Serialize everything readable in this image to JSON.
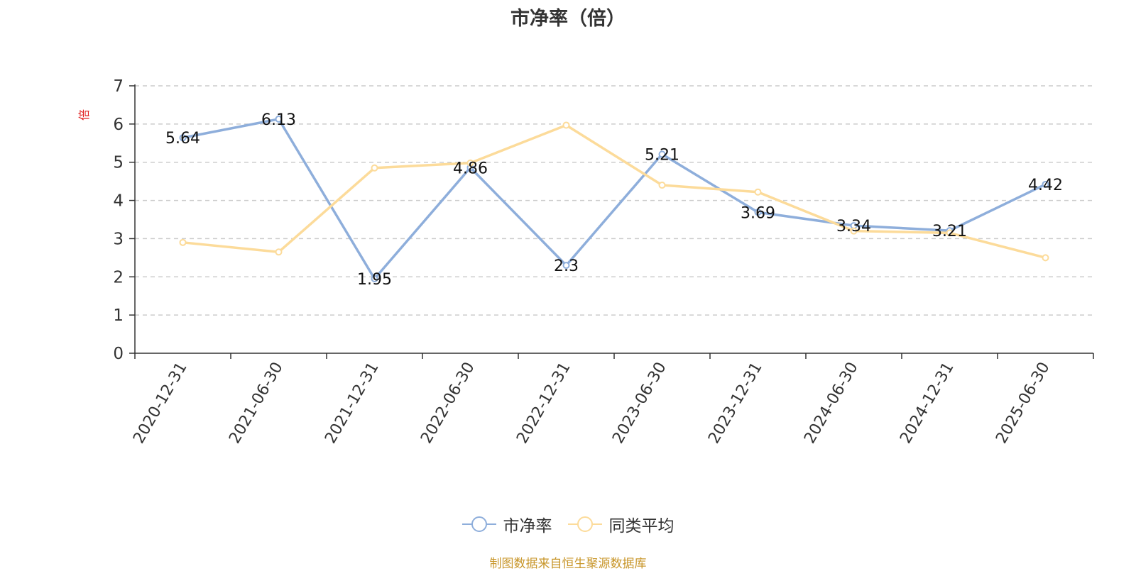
{
  "title": "市净率（倍）",
  "source_note": "制图数据来自恒生聚源数据库",
  "colors": {
    "pb": "#8eaedb",
    "avg": "#fcdb9a",
    "unit": "#e02020",
    "axis": "#333333",
    "grid": "#cccccc"
  },
  "legend": [
    {
      "label": "市净率",
      "color": "#8eaedb"
    },
    {
      "label": "同类平均",
      "color": "#fcdb9a"
    }
  ],
  "chart_data": {
    "type": "line",
    "y_unit": "倍",
    "categories": [
      "2020-12-31",
      "2021-06-30",
      "2021-12-31",
      "2022-06-30",
      "2022-12-31",
      "2023-06-30",
      "2023-12-31",
      "2024-06-30",
      "2024-12-31",
      "2025-06-30"
    ],
    "ylim": [
      0,
      7
    ],
    "yticks": [
      0,
      1,
      2,
      3,
      4,
      5,
      6,
      7
    ],
    "grid": true,
    "legend_position": "bottom",
    "series": [
      {
        "name": "市净率",
        "values": [
          5.64,
          6.13,
          1.95,
          4.86,
          2.3,
          5.21,
          3.69,
          3.34,
          3.21,
          4.42
        ],
        "data_labels": [
          "5.64",
          "6.13",
          "1.95",
          "4.86",
          "2.3",
          "5.21",
          "3.69",
          "3.34",
          "3.21",
          "4.42"
        ]
      },
      {
        "name": "同类平均",
        "values": [
          2.9,
          2.65,
          4.85,
          4.98,
          5.97,
          4.4,
          4.22,
          3.2,
          3.15,
          2.5
        ]
      }
    ]
  }
}
